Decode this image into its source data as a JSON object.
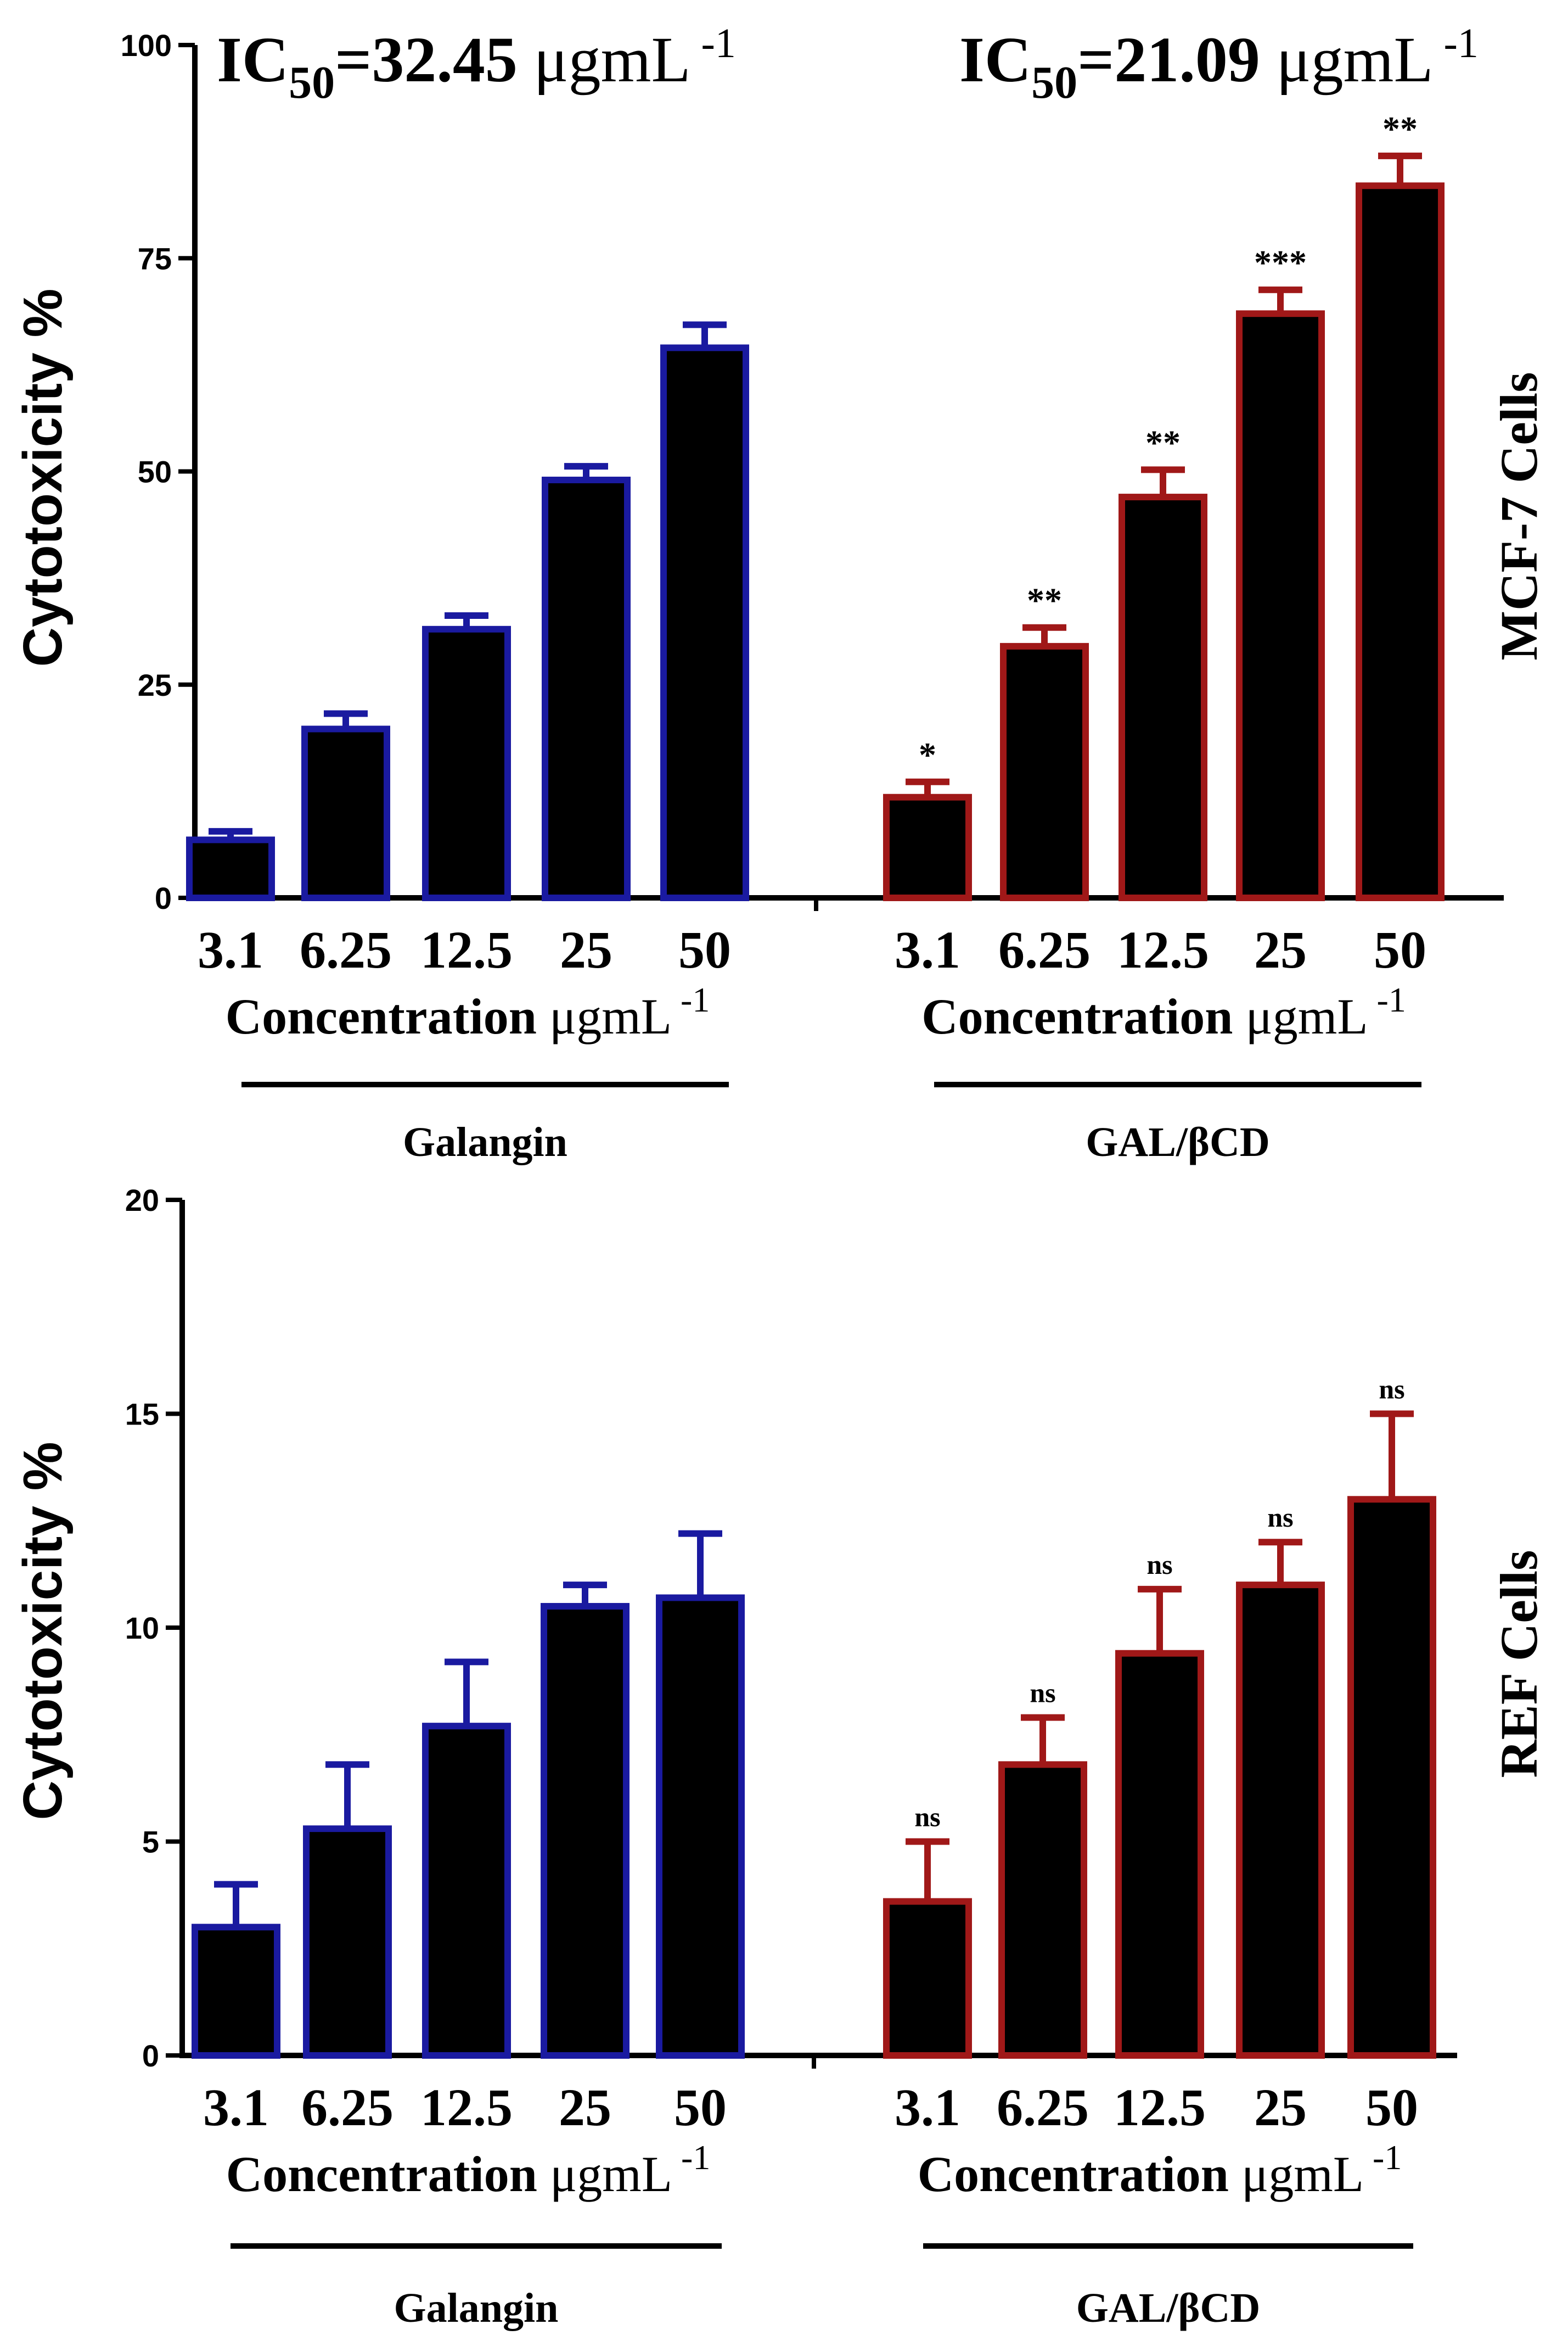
{
  "colors": {
    "galangin": "#1a1aa0",
    "galbcd": "#a01818",
    "bar_fill": "#000000",
    "axis": "#000000"
  },
  "chart_data": [
    {
      "type": "bar",
      "panel": "top",
      "cell_line": "MCF-7 Cells",
      "ylabel": "Cytotoxicity %",
      "ylim": [
        0,
        100
      ],
      "yticks": [
        "0",
        "25",
        "50",
        "75",
        "100"
      ],
      "ytick_values": [
        0,
        25,
        50,
        75,
        100
      ],
      "groups": [
        {
          "name": "Galangin",
          "categories": [
            "3.1",
            "6.25",
            "12.5",
            "25",
            "50"
          ],
          "values": [
            6.8,
            19.8,
            31.5,
            49.0,
            64.5
          ],
          "errors": [
            1.0,
            1.8,
            1.6,
            1.6,
            2.7
          ],
          "significance": [
            "",
            "",
            "",
            "",
            ""
          ],
          "xlabel": {
            "main": "Concentration ",
            "unit": "μgmL",
            "sup": " -1"
          },
          "ic50": {
            "ic": "IC",
            "sub": "50",
            "value": "=32.45",
            "unit": " μgmL",
            "sup": " -1"
          },
          "group_label": "Galangin"
        },
        {
          "name": "GAL/βCD",
          "categories": [
            "3.1",
            "6.25",
            "12.5",
            "25",
            "50"
          ],
          "values": [
            11.8,
            29.5,
            47.0,
            68.5,
            83.5
          ],
          "errors": [
            1.8,
            2.2,
            3.2,
            2.8,
            3.5
          ],
          "significance": [
            "*",
            "**",
            "**",
            "***",
            "**"
          ],
          "xlabel": {
            "main": "Concentration ",
            "unit": "μgmL",
            "sup": " -1"
          },
          "ic50": {
            "ic": "IC",
            "sub": "50",
            "value": "=21.09",
            "unit": " μgmL",
            "sup": " -1"
          },
          "group_label": "GAL/βCD"
        }
      ]
    },
    {
      "type": "bar",
      "panel": "bottom",
      "cell_line": "REF Cells",
      "ylabel": "Cytotoxicity %",
      "ylim": [
        0,
        20
      ],
      "yticks": [
        "0",
        "5",
        "10",
        "15",
        "20"
      ],
      "ytick_values": [
        0,
        5,
        10,
        15,
        20
      ],
      "groups": [
        {
          "name": "Galangin",
          "categories": [
            "3.1",
            "6.25",
            "12.5",
            "25",
            "50"
          ],
          "values": [
            3.0,
            5.3,
            7.7,
            10.5,
            10.7
          ],
          "errors": [
            1.0,
            1.5,
            1.5,
            0.5,
            1.5
          ],
          "significance": [
            "",
            "",
            "",
            "",
            ""
          ],
          "xlabel": {
            "main": "Concentration ",
            "unit": "μgmL",
            "sup": " -1"
          },
          "group_label": "Galangin"
        },
        {
          "name": "GAL/βCD",
          "categories": [
            "3.1",
            "6.25",
            "12.5",
            "25",
            "50"
          ],
          "values": [
            3.6,
            6.8,
            9.4,
            11.0,
            13.0
          ],
          "errors": [
            1.4,
            1.1,
            1.5,
            1.0,
            2.0
          ],
          "significance": [
            "ns",
            "ns",
            "ns",
            "ns",
            "ns"
          ],
          "xlabel": {
            "main": "Concentration ",
            "unit": "μgmL",
            "sup": " -1"
          },
          "group_label": "GAL/βCD"
        }
      ]
    }
  ]
}
